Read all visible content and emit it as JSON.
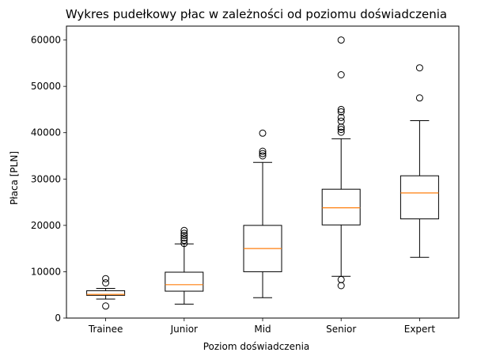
{
  "chart_data": {
    "type": "box",
    "title": "Wykres pudełkowy płac w zależności od poziomu doświadczenia",
    "xlabel": "Poziom doświadczenia",
    "ylabel": "Płaca [PLN]",
    "ylim": [
      0,
      63000
    ],
    "yticks": [
      0,
      10000,
      20000,
      30000,
      40000,
      50000,
      60000
    ],
    "categories": [
      "Trainee",
      "Junior",
      "Mid",
      "Senior",
      "Expert"
    ],
    "boxes": [
      {
        "category": "Trainee",
        "whisker_low": 4100,
        "q1": 4900,
        "median": 5100,
        "q3": 5900,
        "whisker_high": 6400,
        "outliers": [
          2600,
          7600,
          8500
        ]
      },
      {
        "category": "Junior",
        "whisker_low": 3000,
        "q1": 5800,
        "median": 7200,
        "q3": 9900,
        "whisker_high": 16000,
        "outliers": [
          16100,
          16800,
          17300,
          17800,
          18300,
          18900
        ]
      },
      {
        "category": "Mid",
        "whisker_low": 4400,
        "q1": 10000,
        "median": 15000,
        "q3": 20000,
        "whisker_high": 33600,
        "outliers": [
          35000,
          35500,
          36000,
          39900
        ]
      },
      {
        "category": "Senior",
        "whisker_low": 9000,
        "q1": 20100,
        "median": 23800,
        "q3": 27800,
        "whisker_high": 38700,
        "outliers": [
          7000,
          8300,
          40100,
          40700,
          41200,
          42500,
          43300,
          44500,
          45000,
          52500,
          60000
        ]
      },
      {
        "category": "Expert",
        "whisker_low": 13100,
        "q1": 21400,
        "median": 27000,
        "q3": 30700,
        "whisker_high": 42600,
        "outliers": [
          47500,
          54000
        ]
      }
    ],
    "colors": {
      "box": "#000000",
      "median": "#ff7f0e",
      "outlier": "#000000"
    },
    "grid": false,
    "legend": "none"
  }
}
